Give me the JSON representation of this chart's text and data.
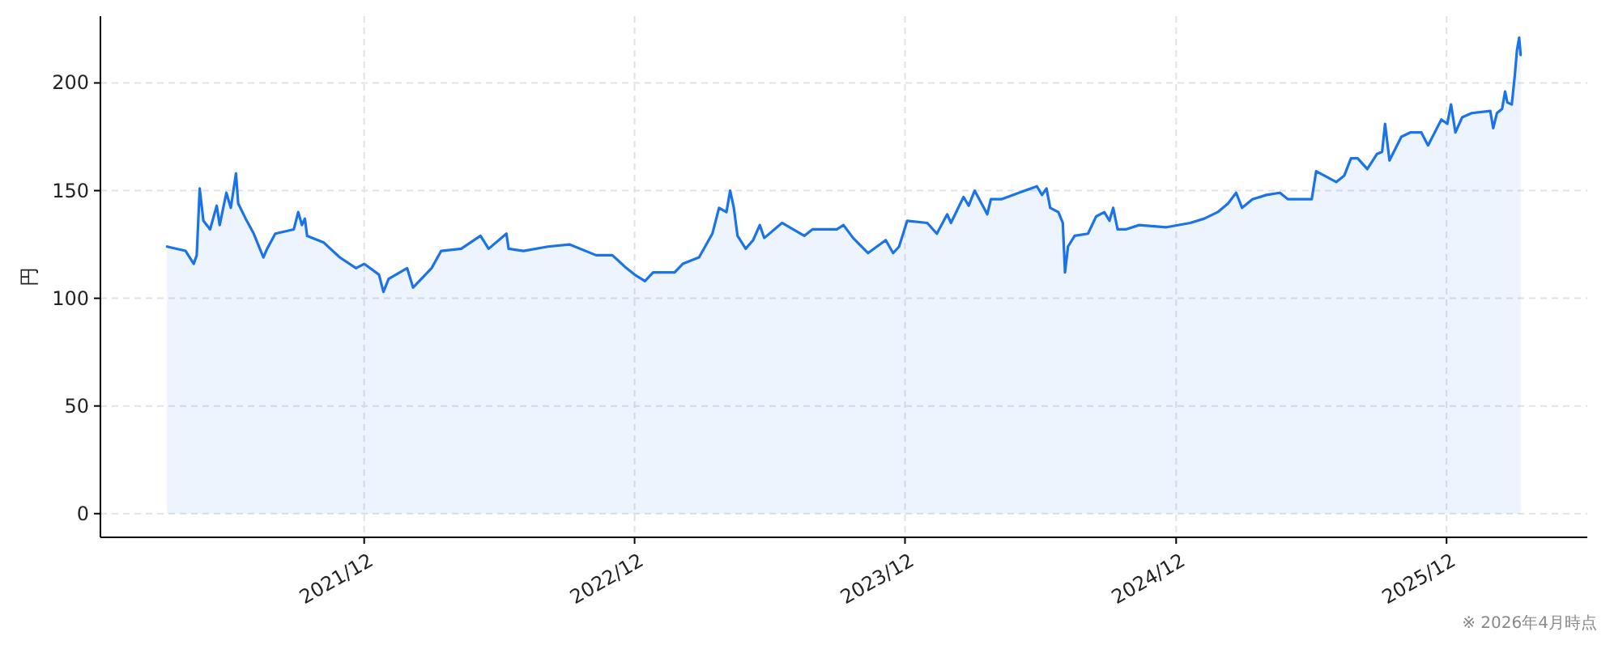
{
  "chart_data": {
    "type": "area",
    "ylabel": "円",
    "annotations": [
      "※ 2026年4月時点"
    ],
    "x": [
      "2021-03-10",
      "2021-04-04",
      "2021-04-15",
      "2021-04-19",
      "2021-04-23",
      "2021-04-28",
      "2021-05-07",
      "2021-05-16",
      "2021-05-20",
      "2021-05-29",
      "2021-06-04",
      "2021-06-11",
      "2021-06-14",
      "2021-06-24",
      "2021-07-05",
      "2021-07-18",
      "2021-07-23",
      "2021-08-03",
      "2021-08-28",
      "2021-09-03",
      "2021-09-08",
      "2021-09-12",
      "2021-09-15",
      "2021-10-07",
      "2021-10-29",
      "2021-11-20",
      "2021-12-01",
      "2021-12-21",
      "2021-12-27",
      "2022-01-03",
      "2022-01-28",
      "2022-02-05",
      "2022-03-02",
      "2022-03-15",
      "2022-04-11",
      "2022-05-07",
      "2022-05-18",
      "2022-06-11",
      "2022-06-14",
      "2022-07-04",
      "2022-08-06",
      "2022-09-04",
      "2022-10-10",
      "2022-11-01",
      "2022-11-20",
      "2022-12-01",
      "2022-12-15",
      "2022-12-26",
      "2023-01-24",
      "2023-02-04",
      "2023-02-26",
      "2023-03-16",
      "2023-03-25",
      "2023-04-04",
      "2023-04-09",
      "2023-04-14",
      "2023-04-19",
      "2023-04-30",
      "2023-05-10",
      "2023-05-19",
      "2023-05-25",
      "2023-06-18",
      "2023-07-18",
      "2023-07-29",
      "2023-08-31",
      "2023-09-09",
      "2023-09-22",
      "2023-10-12",
      "2023-11-05",
      "2023-11-15",
      "2023-11-23",
      "2023-12-04",
      "2023-12-31",
      "2024-01-13",
      "2024-01-27",
      "2024-02-01",
      "2024-02-18",
      "2024-02-25",
      "2024-03-04",
      "2024-03-15",
      "2024-03-21",
      "2024-03-26",
      "2024-04-09",
      "2024-05-11",
      "2024-05-27",
      "2024-06-03",
      "2024-06-09",
      "2024-06-14",
      "2024-06-25",
      "2024-07-01",
      "2024-07-04",
      "2024-07-08",
      "2024-07-17",
      "2024-08-04",
      "2024-08-15",
      "2024-08-26",
      "2024-09-02",
      "2024-09-07",
      "2024-09-13",
      "2024-09-24",
      "2024-10-12",
      "2024-11-18",
      "2024-12-20",
      "2025-01-08",
      "2025-01-26",
      "2025-02-09",
      "2025-02-20",
      "2025-02-28",
      "2025-03-14",
      "2025-04-02",
      "2025-04-20",
      "2025-05-01",
      "2025-06-02",
      "2025-06-08",
      "2025-07-05",
      "2025-07-16",
      "2025-07-25",
      "2025-08-03",
      "2025-08-16",
      "2025-08-29",
      "2025-09-05",
      "2025-09-09",
      "2025-09-15",
      "2025-10-01",
      "2025-10-13",
      "2025-10-28",
      "2025-11-06",
      "2025-11-24",
      "2025-12-02",
      "2025-12-07",
      "2025-12-13",
      "2025-12-22",
      "2026-01-04",
      "2026-01-29",
      "2026-02-02",
      "2026-02-07",
      "2026-02-14",
      "2026-02-18",
      "2026-02-21",
      "2026-02-27",
      "2026-03-03",
      "2026-03-06",
      "2026-03-09",
      "2026-03-11"
    ],
    "values": [
      124,
      122,
      116,
      120,
      151,
      136,
      132,
      143,
      134,
      149,
      142,
      158,
      144,
      137,
      130,
      119,
      123,
      130,
      132,
      140,
      134,
      137,
      129,
      126,
      119,
      114,
      116,
      111,
      103,
      109,
      114,
      105,
      114,
      122,
      123,
      129,
      123,
      130,
      123,
      122,
      124,
      125,
      120,
      120,
      114,
      111,
      108,
      112,
      112,
      116,
      119,
      130,
      142,
      140,
      150,
      142,
      129,
      123,
      127,
      134,
      128,
      135,
      129,
      132,
      132,
      134,
      128,
      121,
      127,
      121,
      124,
      136,
      135,
      130,
      139,
      135,
      147,
      143,
      150,
      143,
      139,
      146,
      146,
      150,
      152,
      148,
      151,
      142,
      140,
      135,
      112,
      124,
      129,
      130,
      138,
      140,
      136,
      142,
      132,
      132,
      134,
      133,
      135,
      137,
      140,
      144,
      149,
      142,
      146,
      148,
      149,
      146,
      146,
      159,
      154,
      157,
      165,
      165,
      160,
      167,
      168,
      181,
      164,
      175,
      177,
      177,
      171,
      183,
      181,
      190,
      177,
      184,
      186,
      187,
      179,
      186,
      188,
      196,
      191,
      190,
      203,
      215,
      221,
      213
    ],
    "color": "#1a73e8",
    "xlim": [
      "2020-12-10",
      "2026-06-09"
    ],
    "xticks": [
      {
        "value": "2021-12-01",
        "label": "2021/12"
      },
      {
        "value": "2022-12-01",
        "label": "2022/12"
      },
      {
        "value": "2023-12-01",
        "label": "2023/12"
      },
      {
        "value": "2024-12-01",
        "label": "2024/12"
      },
      {
        "value": "2025-12-01",
        "label": "2025/12"
      }
    ],
    "ylim": [
      -11,
      231
    ],
    "yticks": [
      0,
      50,
      100,
      150,
      200
    ],
    "grid": true
  }
}
